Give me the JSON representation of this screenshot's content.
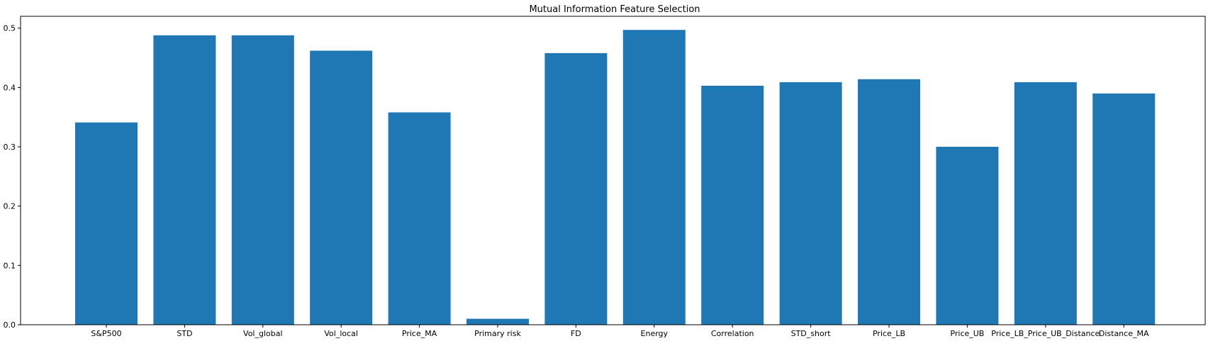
{
  "chart_data": {
    "type": "bar",
    "title": "Mutual Information Feature Selection",
    "xlabel": "",
    "ylabel": "",
    "categories": [
      "S&P500",
      "STD",
      "Vol_global",
      "Vol_local",
      "Price_MA",
      "Primary risk",
      "FD",
      "Energy",
      "Correlation",
      "STD_short",
      "Price_LB",
      "Price_UB",
      "Price_LB_Price_UB_Distance",
      "Distance_MA"
    ],
    "values": [
      0.341,
      0.488,
      0.488,
      0.462,
      0.358,
      0.01,
      0.458,
      0.497,
      0.403,
      0.409,
      0.414,
      0.3,
      0.409,
      0.39
    ],
    "ylim": [
      0,
      0.52
    ],
    "yticks": [
      0.0,
      0.1,
      0.2,
      0.3,
      0.4,
      0.5
    ],
    "ytick_labels": [
      "0.0",
      "0.1",
      "0.2",
      "0.3",
      "0.4",
      "0.5"
    ],
    "bar_color": "#1f77b4",
    "grid": false,
    "legend": "none"
  }
}
